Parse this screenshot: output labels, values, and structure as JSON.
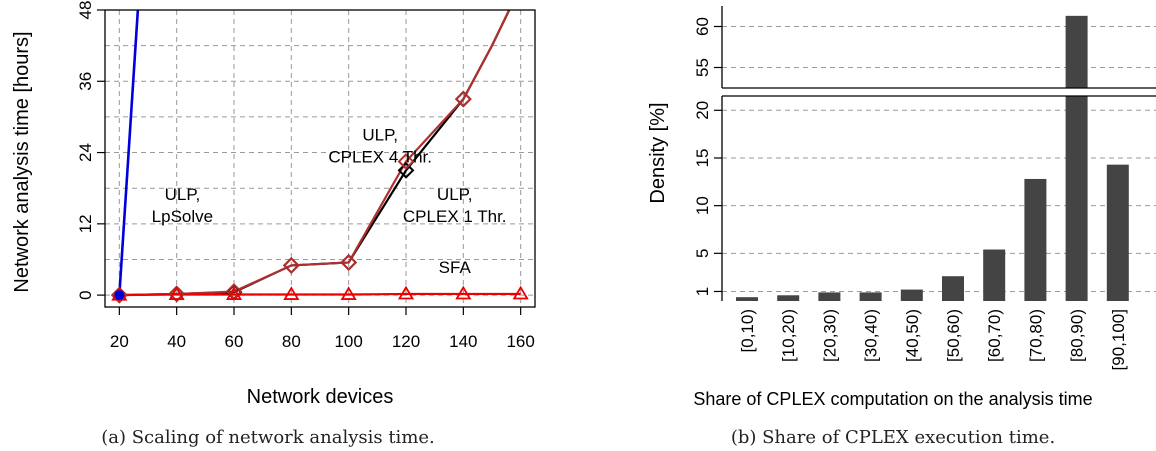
{
  "chart_data": [
    {
      "type": "line",
      "caption": "(a) Scaling of network analysis time.",
      "xlabel": "Network devices",
      "ylabel": "Network analysis time [hours]",
      "xlim": [
        15,
        165
      ],
      "ylim": [
        -2,
        48
      ],
      "x_ticks": [
        "20",
        "40",
        "60",
        "80",
        "100",
        "120",
        "140",
        "160"
      ],
      "y_ticks": [
        "0",
        "12",
        "24",
        "36",
        "48"
      ],
      "grid": true,
      "series": [
        {
          "color": "#0000dd",
          "marker": "circle",
          "x": [
            20,
            27
          ],
          "y": [
            0,
            52
          ]
        },
        {
          "color": "#000000",
          "marker": "diamond",
          "x": [
            20,
            40,
            60,
            80,
            100,
            120,
            140,
            150,
            160
          ],
          "y": [
            0,
            0.2,
            0.5,
            5,
            5.5,
            21,
            33,
            42,
            52
          ]
        },
        {
          "color": "#b03030",
          "marker": "diamond",
          "x": [
            20,
            40,
            60,
            80,
            100,
            120,
            140,
            150,
            160
          ],
          "y": [
            0,
            0.2,
            0.6,
            5,
            5.5,
            22.5,
            33,
            42,
            52
          ]
        },
        {
          "color": "#ee0000",
          "marker": "triangle",
          "x": [
            20,
            40,
            60,
            80,
            100,
            120,
            140,
            160
          ],
          "y": [
            0,
            0.1,
            0.1,
            0.1,
            0.1,
            0.2,
            0.2,
            0.2
          ]
        }
      ],
      "annotations": [
        {
          "lines": [
            "ULP,",
            "LpSolve"
          ],
          "x": 42,
          "y": 16
        },
        {
          "lines": [
            "ULP,",
            "CPLEX 4 Thr."
          ],
          "x": 111,
          "y": 26
        },
        {
          "lines": [
            "ULP,",
            "CPLEX 1 Thr."
          ],
          "x": 137,
          "y": 16
        },
        {
          "lines": [
            "SFA"
          ],
          "x": 137,
          "y": 3.7
        }
      ]
    },
    {
      "type": "bar",
      "caption": "(b) Share of CPLEX execution time.",
      "xlabel": "Share of CPLEX computation on the analysis time",
      "ylabel": "Density [%]",
      "categories": [
        "[0,10)",
        "[10,20)",
        "[20,30)",
        "[30,40)",
        "[40,50)",
        "[50,60)",
        "[60,70)",
        "[70,80)",
        "[80,90)",
        "[90,100]"
      ],
      "values": [
        0.4,
        0.6,
        0.9,
        0.9,
        1.2,
        2.6,
        5.4,
        12.8,
        61.3,
        14.3
      ],
      "color": "#444444",
      "y_ticks_lower": [
        "1",
        "5",
        "10",
        "15",
        "20"
      ],
      "y_ticks_upper": [
        "55",
        "60"
      ],
      "axis_break": {
        "lower_range": [
          0,
          21.5
        ],
        "upper_range": [
          52.5,
          62.5
        ]
      },
      "grid": true
    }
  ]
}
